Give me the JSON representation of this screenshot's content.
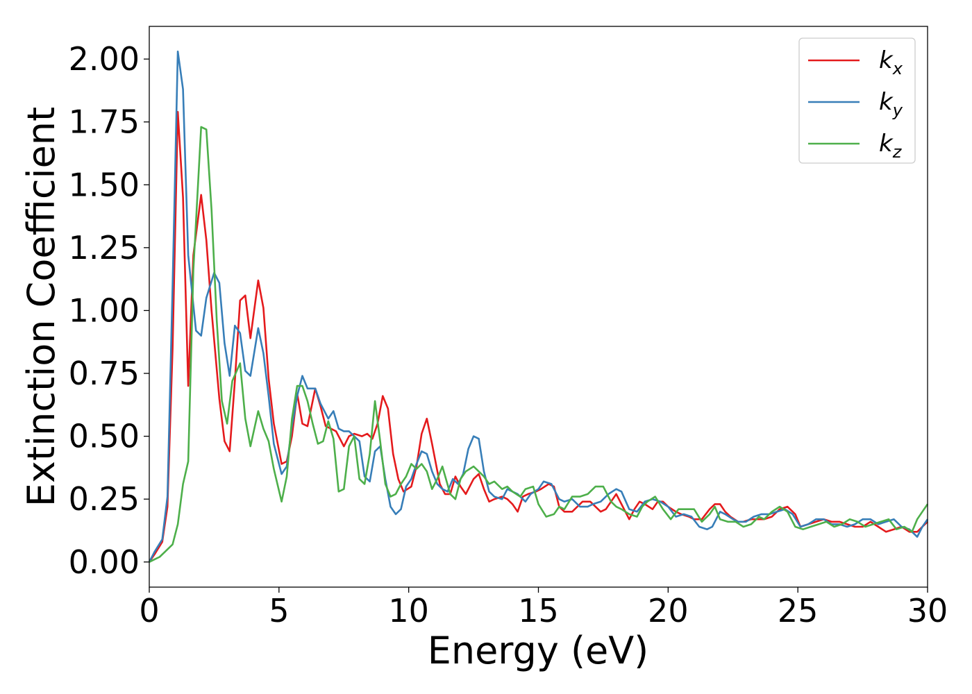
{
  "chart_data": {
    "type": "line",
    "xlabel": "Energy (eV)",
    "ylabel": "Extinction Coefficient",
    "xlim": [
      0,
      30
    ],
    "ylim": [
      -0.1,
      2.13
    ],
    "xticks": [
      0,
      5,
      10,
      15,
      20,
      25,
      30
    ],
    "yticks": [
      0.0,
      0.25,
      0.5,
      0.75,
      1.0,
      1.25,
      1.5,
      1.75,
      2.0
    ],
    "xtick_labels": [
      "0",
      "5",
      "10",
      "15",
      "20",
      "25",
      "30"
    ],
    "ytick_labels": [
      "0.00",
      "0.25",
      "0.50",
      "0.75",
      "1.00",
      "1.25",
      "1.50",
      "1.75",
      "2.00"
    ],
    "grid": false,
    "legend_position": "top-right",
    "series": [
      {
        "name": "k",
        "subscript": "x",
        "color": "#e41a1c",
        "x": [
          0,
          0.2,
          0.5,
          0.7,
          0.9,
          1.1,
          1.3,
          1.5,
          1.7,
          2.0,
          2.2,
          2.4,
          2.7,
          2.9,
          3.1,
          3.3,
          3.5,
          3.7,
          3.9,
          4.2,
          4.4,
          4.6,
          4.8,
          5.1,
          5.3,
          5.5,
          5.7,
          5.9,
          6.1,
          6.4,
          6.6,
          6.8,
          7.0,
          7.2,
          7.5,
          7.7,
          7.9,
          8.2,
          8.4,
          8.6,
          8.8,
          9.0,
          9.2,
          9.4,
          9.6,
          9.8,
          10.1,
          10.3,
          10.5,
          10.7,
          10.9,
          11.2,
          11.4,
          11.6,
          11.8,
          12.0,
          12.2,
          12.5,
          12.7,
          12.9,
          13.1,
          13.3,
          13.6,
          13.8,
          14.0,
          14.2,
          14.4,
          14.6,
          14.9,
          15.1,
          15.4,
          15.6,
          15.8,
          16.0,
          16.3,
          16.5,
          16.7,
          17.0,
          17.2,
          17.4,
          17.6,
          17.8,
          18.0,
          18.2,
          18.5,
          18.7,
          18.9,
          19.1,
          19.4,
          19.6,
          19.8,
          20.0,
          20.3,
          20.5,
          20.8,
          21.0,
          21.3,
          21.6,
          21.8,
          22.0,
          22.2,
          22.4,
          22.7,
          22.9,
          23.2,
          23.5,
          23.7,
          24.0,
          24.3,
          24.6,
          24.9,
          25.1,
          25.4,
          25.7,
          26.0,
          26.3,
          26.6,
          26.9,
          27.2,
          27.5,
          27.8,
          28.1,
          28.4,
          28.7,
          29.0,
          29.3,
          29.6,
          29.8,
          30.0
        ],
        "y": [
          0.0,
          0.03,
          0.08,
          0.22,
          0.85,
          1.79,
          1.45,
          0.7,
          1.22,
          1.46,
          1.28,
          1.0,
          0.65,
          0.48,
          0.44,
          0.72,
          1.04,
          1.06,
          0.89,
          1.12,
          1.01,
          0.73,
          0.55,
          0.39,
          0.4,
          0.5,
          0.67,
          0.55,
          0.54,
          0.69,
          0.62,
          0.54,
          0.53,
          0.52,
          0.46,
          0.5,
          0.51,
          0.5,
          0.51,
          0.49,
          0.55,
          0.66,
          0.61,
          0.43,
          0.33,
          0.28,
          0.3,
          0.38,
          0.51,
          0.57,
          0.47,
          0.31,
          0.27,
          0.27,
          0.34,
          0.3,
          0.27,
          0.33,
          0.35,
          0.29,
          0.24,
          0.25,
          0.26,
          0.25,
          0.23,
          0.2,
          0.26,
          0.27,
          0.28,
          0.29,
          0.31,
          0.3,
          0.22,
          0.2,
          0.2,
          0.22,
          0.24,
          0.24,
          0.22,
          0.2,
          0.21,
          0.24,
          0.27,
          0.23,
          0.17,
          0.21,
          0.24,
          0.23,
          0.21,
          0.24,
          0.24,
          0.22,
          0.2,
          0.19,
          0.18,
          0.17,
          0.17,
          0.21,
          0.23,
          0.23,
          0.2,
          0.18,
          0.16,
          0.16,
          0.17,
          0.17,
          0.17,
          0.18,
          0.21,
          0.22,
          0.19,
          0.14,
          0.15,
          0.16,
          0.17,
          0.16,
          0.16,
          0.15,
          0.14,
          0.14,
          0.16,
          0.14,
          0.12,
          0.13,
          0.14,
          0.12,
          0.12,
          0.14,
          0.16
        ]
      },
      {
        "name": "k",
        "subscript": "y",
        "color": "#377eb8",
        "x": [
          0,
          0.2,
          0.5,
          0.7,
          0.9,
          1.1,
          1.3,
          1.5,
          1.8,
          2.0,
          2.2,
          2.5,
          2.7,
          2.9,
          3.1,
          3.3,
          3.5,
          3.7,
          3.9,
          4.2,
          4.4,
          4.6,
          4.8,
          5.1,
          5.3,
          5.5,
          5.7,
          5.9,
          6.1,
          6.4,
          6.6,
          6.9,
          7.1,
          7.3,
          7.5,
          7.7,
          7.9,
          8.1,
          8.3,
          8.5,
          8.7,
          8.9,
          9.1,
          9.3,
          9.5,
          9.7,
          9.9,
          10.1,
          10.3,
          10.5,
          10.7,
          10.9,
          11.1,
          11.3,
          11.5,
          11.7,
          11.9,
          12.1,
          12.3,
          12.5,
          12.7,
          12.9,
          13.1,
          13.3,
          13.6,
          13.8,
          14.0,
          14.2,
          14.5,
          14.7,
          15.0,
          15.2,
          15.5,
          15.8,
          16.0,
          16.3,
          16.6,
          16.9,
          17.1,
          17.4,
          17.7,
          18.0,
          18.2,
          18.5,
          18.8,
          19.1,
          19.4,
          19.7,
          20.0,
          20.3,
          20.6,
          20.9,
          21.2,
          21.5,
          21.7,
          22.0,
          22.2,
          22.5,
          22.7,
          23.0,
          23.3,
          23.6,
          23.9,
          24.2,
          24.5,
          24.8,
          25.1,
          25.4,
          25.7,
          26.0,
          26.3,
          26.6,
          26.9,
          27.2,
          27.5,
          27.8,
          28.1,
          28.4,
          28.7,
          29.0,
          29.3,
          29.6,
          29.8,
          30.0
        ],
        "y": [
          0.0,
          0.04,
          0.09,
          0.26,
          1.1,
          2.03,
          1.88,
          1.22,
          0.92,
          0.9,
          1.05,
          1.15,
          1.11,
          0.87,
          0.74,
          0.94,
          0.91,
          0.76,
          0.74,
          0.93,
          0.83,
          0.66,
          0.47,
          0.35,
          0.38,
          0.54,
          0.66,
          0.74,
          0.69,
          0.69,
          0.63,
          0.57,
          0.6,
          0.53,
          0.52,
          0.52,
          0.5,
          0.48,
          0.34,
          0.32,
          0.44,
          0.46,
          0.33,
          0.22,
          0.19,
          0.21,
          0.3,
          0.33,
          0.39,
          0.44,
          0.43,
          0.36,
          0.31,
          0.29,
          0.28,
          0.33,
          0.31,
          0.35,
          0.45,
          0.5,
          0.49,
          0.36,
          0.28,
          0.26,
          0.25,
          0.29,
          0.28,
          0.27,
          0.24,
          0.27,
          0.29,
          0.32,
          0.31,
          0.25,
          0.24,
          0.25,
          0.22,
          0.22,
          0.23,
          0.24,
          0.27,
          0.29,
          0.28,
          0.21,
          0.2,
          0.24,
          0.25,
          0.24,
          0.22,
          0.18,
          0.19,
          0.18,
          0.14,
          0.13,
          0.14,
          0.2,
          0.19,
          0.17,
          0.16,
          0.16,
          0.18,
          0.19,
          0.19,
          0.2,
          0.21,
          0.19,
          0.14,
          0.15,
          0.17,
          0.17,
          0.15,
          0.15,
          0.14,
          0.15,
          0.17,
          0.17,
          0.15,
          0.16,
          0.17,
          0.14,
          0.13,
          0.1,
          0.14,
          0.17
        ]
      },
      {
        "name": "k",
        "subscript": "z",
        "color": "#4daf4a",
        "x": [
          0,
          0.2,
          0.4,
          0.6,
          0.9,
          1.1,
          1.3,
          1.5,
          1.7,
          2.0,
          2.2,
          2.4,
          2.6,
          2.8,
          3.0,
          3.2,
          3.5,
          3.7,
          3.9,
          4.2,
          4.4,
          4.6,
          4.8,
          5.1,
          5.3,
          5.5,
          5.7,
          5.9,
          6.1,
          6.3,
          6.5,
          6.7,
          6.9,
          7.1,
          7.3,
          7.5,
          7.7,
          7.9,
          8.1,
          8.3,
          8.5,
          8.7,
          8.9,
          9.1,
          9.3,
          9.5,
          9.7,
          9.9,
          10.1,
          10.3,
          10.5,
          10.7,
          10.9,
          11.1,
          11.3,
          11.6,
          11.8,
          12.0,
          12.2,
          12.5,
          12.7,
          12.9,
          13.1,
          13.3,
          13.6,
          13.8,
          14.0,
          14.3,
          14.5,
          14.8,
          15.0,
          15.3,
          15.6,
          15.8,
          16.0,
          16.3,
          16.6,
          16.9,
          17.2,
          17.5,
          17.8,
          18.0,
          18.2,
          18.5,
          18.8,
          19.0,
          19.2,
          19.5,
          19.8,
          20.1,
          20.4,
          20.7,
          21.0,
          21.3,
          21.6,
          21.8,
          22.0,
          22.3,
          22.6,
          22.9,
          23.2,
          23.5,
          23.7,
          24.0,
          24.3,
          24.6,
          24.9,
          25.2,
          25.5,
          25.8,
          26.1,
          26.4,
          26.7,
          27.0,
          27.3,
          27.6,
          27.9,
          28.2,
          28.5,
          28.8,
          29.1,
          29.4,
          29.6,
          29.8,
          30.0
        ],
        "y": [
          0.0,
          0.01,
          0.02,
          0.04,
          0.07,
          0.15,
          0.31,
          0.4,
          1.16,
          1.73,
          1.72,
          1.4,
          0.96,
          0.64,
          0.55,
          0.72,
          0.79,
          0.57,
          0.46,
          0.6,
          0.53,
          0.48,
          0.37,
          0.24,
          0.34,
          0.57,
          0.7,
          0.7,
          0.64,
          0.55,
          0.47,
          0.48,
          0.56,
          0.49,
          0.28,
          0.29,
          0.46,
          0.5,
          0.33,
          0.31,
          0.43,
          0.64,
          0.48,
          0.31,
          0.26,
          0.27,
          0.31,
          0.34,
          0.39,
          0.37,
          0.39,
          0.36,
          0.29,
          0.33,
          0.38,
          0.27,
          0.25,
          0.33,
          0.36,
          0.38,
          0.36,
          0.34,
          0.31,
          0.32,
          0.29,
          0.3,
          0.28,
          0.26,
          0.29,
          0.3,
          0.23,
          0.18,
          0.19,
          0.22,
          0.21,
          0.26,
          0.26,
          0.27,
          0.3,
          0.3,
          0.24,
          0.22,
          0.21,
          0.19,
          0.18,
          0.22,
          0.24,
          0.26,
          0.21,
          0.17,
          0.21,
          0.21,
          0.21,
          0.16,
          0.19,
          0.22,
          0.17,
          0.16,
          0.16,
          0.14,
          0.15,
          0.18,
          0.17,
          0.2,
          0.22,
          0.2,
          0.14,
          0.13,
          0.14,
          0.15,
          0.16,
          0.14,
          0.15,
          0.17,
          0.16,
          0.14,
          0.15,
          0.16,
          0.17,
          0.13,
          0.14,
          0.12,
          0.17,
          0.2,
          0.23
        ]
      }
    ]
  }
}
